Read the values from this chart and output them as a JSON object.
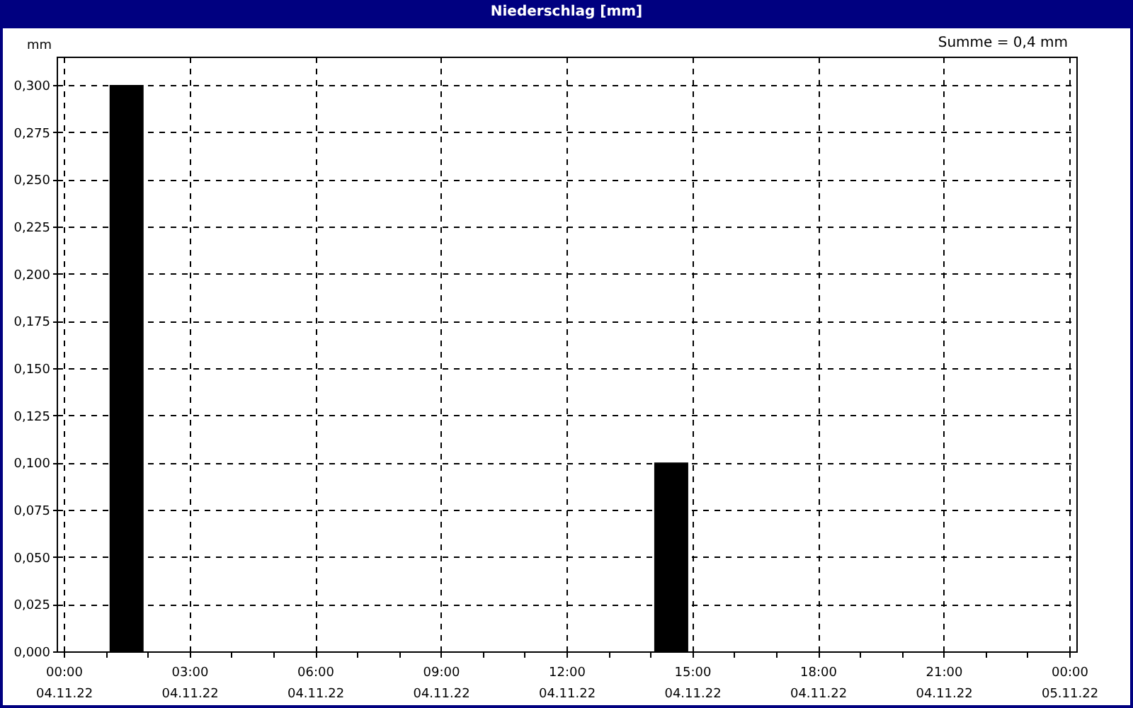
{
  "chart_data": {
    "type": "bar",
    "title": "Niederschlag [mm]",
    "ylabel": "mm",
    "annotations": [
      "Summe = 0,4 mm"
    ],
    "x": [
      "--11-04T01:30",
      "--11-04T14:30"
    ],
    "series": [
      {
        "color": "#000000",
        "values": [
          0.3,
          0.1
        ]
      }
    ],
    "xlim": [
      "--11-04T00:00",
      "--11-05T00:00"
    ],
    "ylim": [
      0,
      0.315
    ],
    "xticks": [
      {
        "value": "--11-04T00:00",
        "label": "00:00\n04.11.22"
      },
      {
        "value": "--11-04T01:00",
        "label": null
      },
      {
        "value": "--11-04T02:00",
        "label": null
      },
      {
        "value": "--11-04T03:00",
        "label": "03:00\n04.11.22"
      },
      {
        "value": "--11-04T04:00",
        "label": null
      },
      {
        "value": "--11-04T05:00",
        "label": null
      },
      {
        "value": "--11-04T06:00",
        "label": "06:00\n04.11.22"
      },
      {
        "value": "--11-04T07:00",
        "label": null
      },
      {
        "value": "--11-04T08:00",
        "label": null
      },
      {
        "value": "--11-04T09:00",
        "label": "09:00\n04.11.22"
      },
      {
        "value": "--11-04T10:00",
        "label": null
      },
      {
        "value": "--11-04T11:00",
        "label": null
      },
      {
        "value": "--11-04T12:00",
        "label": "12:00\n04.11.22"
      },
      {
        "value": "--11-04T13:00",
        "label": null
      },
      {
        "value": "--11-04T14:00",
        "label": null
      },
      {
        "value": "--11-04T15:00",
        "label": "15:00\n04.11.22"
      },
      {
        "value": "--11-04T16:00",
        "label": null
      },
      {
        "value": "--11-04T17:00",
        "label": null
      },
      {
        "value": "--11-04T18:00",
        "label": "18:00\n04.11.22"
      },
      {
        "value": "--11-04T19:00",
        "label": null
      },
      {
        "value": "--11-04T20:00",
        "label": null
      },
      {
        "value": "--11-04T21:00",
        "label": "21:00\n04.11.22"
      },
      {
        "value": "--11-04T22:00",
        "label": null
      },
      {
        "value": "--11-04T23:00",
        "label": null
      },
      {
        "value": "--11-05T00:00",
        "label": "00:00\n05.11.22"
      }
    ],
    "yticks": [
      {
        "value": 0,
        "label": "0,000"
      },
      {
        "value": 0.025,
        "label": "0,025"
      },
      {
        "value": 0.05,
        "label": "0,050"
      },
      {
        "value": 0.075,
        "label": "0,075"
      },
      {
        "value": 0.1,
        "label": "0,100"
      },
      {
        "value": 0.125,
        "label": "0,125"
      },
      {
        "value": 0.15,
        "label": "0,150"
      },
      {
        "value": 0.175,
        "label": "0,175"
      },
      {
        "value": 0.2,
        "label": "0,200"
      },
      {
        "value": 0.225,
        "label": "0,225"
      },
      {
        "value": 0.25,
        "label": "0,250"
      },
      {
        "value": 0.275,
        "label": "0,275"
      },
      {
        "value": 0.3,
        "label": "0,300"
      }
    ],
    "grid": true,
    "legend": false
  }
}
